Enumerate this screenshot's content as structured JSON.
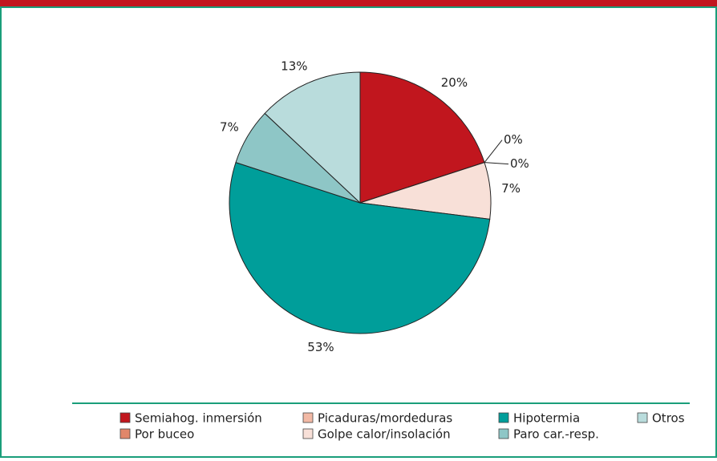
{
  "chart_data": {
    "type": "pie",
    "categories": [
      "Semiahog. inmersión",
      "Por buceo",
      "Picaduras/mordeduras",
      "Golpe calor/insolación",
      "Hipotermia",
      "Paro car.-resp.",
      "Otros"
    ],
    "values": [
      20,
      0,
      0,
      7,
      53,
      7,
      13
    ],
    "value_labels": [
      "20%",
      "0%",
      "0%",
      "7%",
      "53%",
      "7%",
      "13%"
    ],
    "colors": [
      "#c1161e",
      "#e0876a",
      "#f2b9a5",
      "#f8e0d8",
      "#009e9a",
      "#8ec6c6",
      "#b9dcdc"
    ]
  }
}
